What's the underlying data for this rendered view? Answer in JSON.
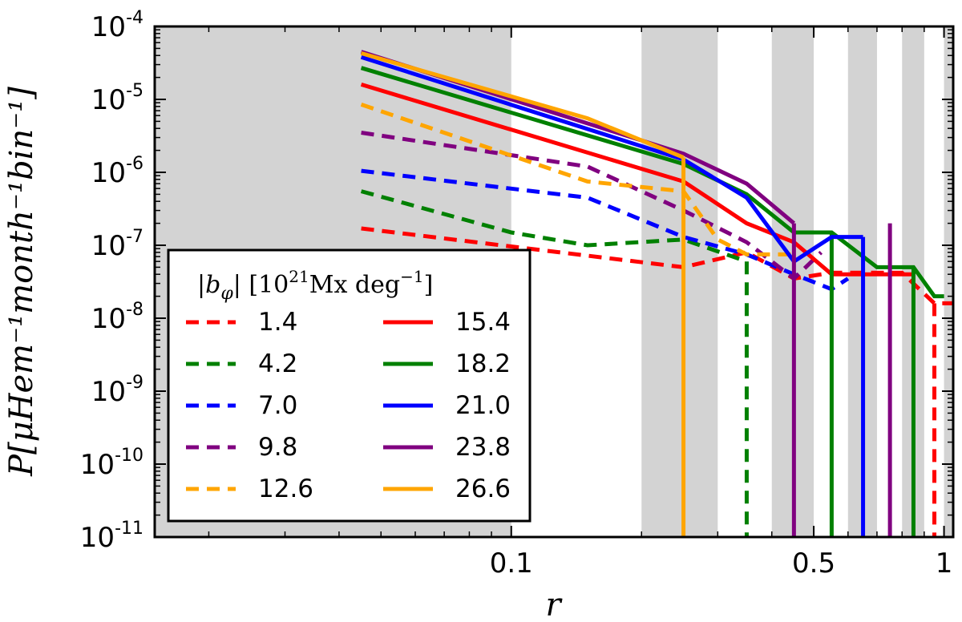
{
  "chart_data": {
    "type": "line",
    "xscale": "log",
    "yscale": "log",
    "xlim": [
      0.015,
      1.05
    ],
    "ylim_exponents": [
      -11,
      -4
    ],
    "xlabel": "r",
    "ylabel": "P[μHem⁻¹month⁻¹bin⁻¹]",
    "x_ticks": [
      {
        "value": 0.1,
        "label": "0.1"
      },
      {
        "value": 0.5,
        "label": "0.5"
      },
      {
        "value": 1,
        "label": "1"
      }
    ],
    "y_ticks": [
      {
        "exp": -4,
        "base": "10",
        "sup": "-4"
      },
      {
        "exp": -5,
        "base": "10",
        "sup": "-5"
      },
      {
        "exp": -6,
        "base": "10",
        "sup": "-6"
      },
      {
        "exp": -7,
        "base": "10",
        "sup": "-7"
      },
      {
        "exp": -8,
        "base": "10",
        "sup": "-8"
      },
      {
        "exp": -9,
        "base": "10",
        "sup": "-9"
      },
      {
        "exp": -10,
        "base": "10",
        "sup": "-10"
      },
      {
        "exp": -11,
        "base": "10",
        "sup": "-11"
      }
    ],
    "shaded_bands": [
      [
        0.015,
        0.1
      ],
      [
        0.2,
        0.3
      ],
      [
        0.4,
        0.5
      ],
      [
        0.6,
        0.7
      ],
      [
        0.8,
        0.9
      ],
      [
        1.0,
        1.05
      ]
    ],
    "legend": {
      "title": "|bφ| [10²¹Mx deg⁻¹]",
      "title_parts": {
        "b": "b",
        "phi": "φ",
        "unit_a": "[10",
        "unit_sup": "21",
        "unit_b": "Mx deg",
        "unit_sup2": "−1",
        "unit_end": "]"
      },
      "position": "lower-left"
    },
    "series": [
      {
        "name": "1.4",
        "color": "#ff0000",
        "style": "dashed",
        "points": [
          [
            0.045,
            1.7e-07
          ],
          [
            0.25,
            5e-08
          ],
          [
            0.35,
            8e-08
          ],
          [
            0.45,
            3.5e-08
          ],
          [
            0.55,
            4.2e-08
          ],
          [
            0.8,
            4.2e-08
          ],
          [
            0.95,
            1.6e-08
          ],
          [
            1.05,
            1.6e-08
          ]
        ],
        "drops_x": [
          0.95
        ]
      },
      {
        "name": "4.2",
        "color": "#008000",
        "style": "dashed",
        "points": [
          [
            0.045,
            5.5e-07
          ],
          [
            0.1,
            1.5e-07
          ],
          [
            0.15,
            1e-07
          ],
          [
            0.25,
            1.2e-07
          ],
          [
            0.35,
            6e-08
          ]
        ],
        "drops_x": [
          0.35
        ]
      },
      {
        "name": "7.0",
        "color": "#0000ff",
        "style": "dashed",
        "points": [
          [
            0.045,
            1.05e-06
          ],
          [
            0.15,
            4.5e-07
          ],
          [
            0.25,
            1.3e-07
          ],
          [
            0.35,
            7.5e-08
          ],
          [
            0.45,
            4e-08
          ],
          [
            0.55,
            2.5e-08
          ],
          [
            0.6,
            3.5e-08
          ]
        ],
        "drops_x": []
      },
      {
        "name": "9.8",
        "color": "#800080",
        "style": "dashed",
        "points": [
          [
            0.045,
            3.5e-06
          ],
          [
            0.15,
            1.2e-06
          ],
          [
            0.25,
            3e-07
          ],
          [
            0.35,
            1.1e-07
          ],
          [
            0.45,
            3.5e-08
          ],
          [
            0.52,
            8e-08
          ]
        ],
        "drops_x": []
      },
      {
        "name": "12.6",
        "color": "#ffa500",
        "style": "dashed",
        "points": [
          [
            0.045,
            8.5e-06
          ],
          [
            0.15,
            7.5e-07
          ],
          [
            0.25,
            5.5e-07
          ],
          [
            0.3,
            1.2e-07
          ],
          [
            0.35,
            7.5e-08
          ],
          [
            0.45,
            7.5e-08
          ]
        ],
        "drops_x": []
      },
      {
        "name": "15.4",
        "color": "#ff0000",
        "style": "solid",
        "points": [
          [
            0.045,
            1.6e-05
          ],
          [
            0.25,
            7.5e-07
          ],
          [
            0.35,
            2e-07
          ],
          [
            0.45,
            1.1e-07
          ],
          [
            0.55,
            4e-08
          ],
          [
            0.7,
            4e-08
          ],
          [
            0.85,
            4e-08
          ]
        ],
        "drops_x": []
      },
      {
        "name": "18.2",
        "color": "#008000",
        "style": "solid",
        "points": [
          [
            0.045,
            2.7e-05
          ],
          [
            0.25,
            1.3e-06
          ],
          [
            0.35,
            5e-07
          ],
          [
            0.45,
            1.5e-07
          ],
          [
            0.55,
            1.5e-07
          ],
          [
            0.7,
            5e-08
          ],
          [
            0.85,
            5e-08
          ],
          [
            0.95,
            2e-08
          ],
          [
            1.0,
            2e-08
          ]
        ],
        "drops_x": [
          0.55,
          0.85
        ]
      },
      {
        "name": "21.0",
        "color": "#0000ff",
        "style": "solid",
        "points": [
          [
            0.045,
            3.8e-05
          ],
          [
            0.25,
            1.5e-06
          ],
          [
            0.35,
            4.5e-07
          ],
          [
            0.45,
            6e-08
          ],
          [
            0.55,
            1.3e-07
          ],
          [
            0.65,
            1.3e-07
          ]
        ],
        "drops_x": [
          0.65
        ]
      },
      {
        "name": "23.8",
        "color": "#800080",
        "style": "solid",
        "points": [
          [
            0.045,
            4.5e-05
          ],
          [
            0.25,
            1.8e-06
          ],
          [
            0.35,
            7e-07
          ],
          [
            0.45,
            2e-07
          ]
        ],
        "drops_x": [
          0.45
        ],
        "spikes_x": [
          0.75
        ]
      },
      {
        "name": "26.6",
        "color": "#ffa500",
        "style": "solid",
        "points": [
          [
            0.045,
            4.3e-05
          ],
          [
            0.15,
            5.5e-06
          ],
          [
            0.25,
            1.6e-06
          ]
        ],
        "drops_x": [
          0.25
        ]
      }
    ]
  }
}
